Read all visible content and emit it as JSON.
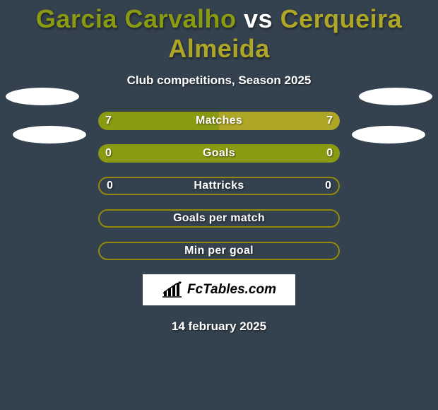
{
  "title": {
    "text": "Garcia Carvalho vs Cerqueira Almeida",
    "player1_color": "#8a9b12",
    "player2_color": "#aea626"
  },
  "subtitle": "Club competitions, Season 2025",
  "date": "14 february 2025",
  "logo": {
    "text": "FcTables.com"
  },
  "colors": {
    "background": "#34414e",
    "outline": "#938a0b",
    "text": "#ffffff"
  },
  "stats": [
    {
      "label": "Matches",
      "left_val": "7",
      "right_val": "7",
      "left_pct": 50,
      "right_pct": 50,
      "left_color": "#8a9b12",
      "right_color": "#aea626",
      "outline": false
    },
    {
      "label": "Goals",
      "left_val": "0",
      "right_val": "0",
      "left_pct": 100,
      "right_pct": 0,
      "left_color": "#8a9b12",
      "right_color": "#aea626",
      "outline": false
    },
    {
      "label": "Hattricks",
      "left_val": "0",
      "right_val": "0",
      "left_pct": 0,
      "right_pct": 0,
      "left_color": "#8a9b12",
      "right_color": "#aea626",
      "outline": true
    },
    {
      "label": "Goals per match",
      "left_val": "",
      "right_val": "",
      "left_pct": 0,
      "right_pct": 0,
      "left_color": "#8a9b12",
      "right_color": "#aea626",
      "outline": true
    },
    {
      "label": "Min per goal",
      "left_val": "",
      "right_val": "",
      "left_pct": 0,
      "right_pct": 0,
      "left_color": "#8a9b12",
      "right_color": "#aea626",
      "outline": true
    }
  ]
}
